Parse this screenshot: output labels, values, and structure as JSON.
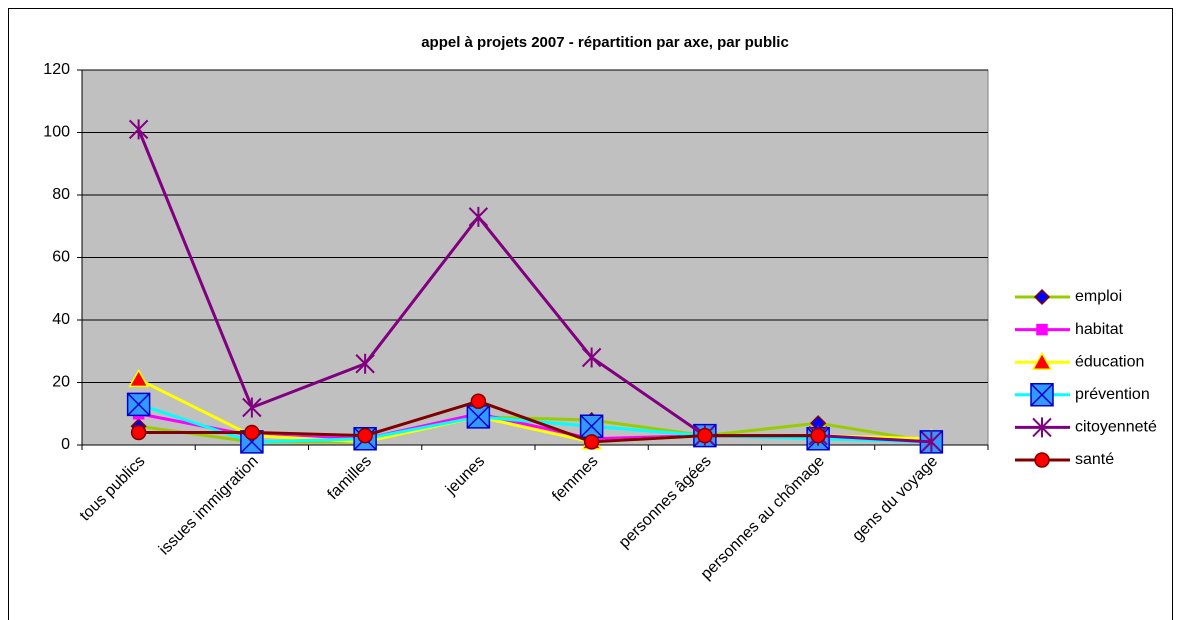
{
  "chart_data": {
    "type": "line",
    "title": "appel à projets 2007 - répartition par axe, par public",
    "categories": [
      "tous publics",
      "issues immigration",
      "familles",
      "jeunes",
      "femmes",
      "personnes âgées",
      "personnes au chômage",
      "gens du voyage"
    ],
    "series": [
      {
        "name": "emploi",
        "color": "#99cc00",
        "marker": "diamond",
        "marker_color": "#0000ff",
        "marker_edge": "#800000",
        "values": [
          6,
          1,
          1,
          9,
          8,
          3,
          7,
          1
        ]
      },
      {
        "name": "habitat",
        "color": "#ff00ff",
        "marker": "square",
        "marker_color": "#ff00ff",
        "marker_edge": "#ff00ff",
        "values": [
          10,
          3,
          2,
          10,
          2,
          3,
          3,
          1
        ]
      },
      {
        "name": "éducation",
        "color": "#ffff00",
        "marker": "triangle",
        "marker_color": "#ff0000",
        "marker_edge": "#ffff00",
        "values": [
          21,
          3,
          1,
          9,
          1,
          3,
          3,
          2
        ]
      },
      {
        "name": "prévention",
        "color": "#00ffff",
        "marker": "xsquare",
        "marker_color": "#3399ff",
        "marker_edge": "#0000cc",
        "values": [
          13,
          1,
          2,
          9,
          6,
          3,
          2,
          1
        ]
      },
      {
        "name": "citoyenneté",
        "color": "#800080",
        "marker": "star",
        "marker_color": "#800080",
        "marker_edge": "#800080",
        "values": [
          101,
          12,
          26,
          73,
          28,
          3,
          3,
          1
        ]
      },
      {
        "name": "santé",
        "color": "#800000",
        "marker": "circle",
        "marker_color": "#ff0000",
        "marker_edge": "#800000",
        "values": [
          4,
          4,
          3,
          14,
          1,
          3,
          3,
          null
        ]
      }
    ],
    "ylim": [
      0,
      120
    ],
    "yticks": [
      0,
      20,
      40,
      60,
      80,
      100,
      120
    ],
    "grid": true,
    "legend": "right"
  }
}
